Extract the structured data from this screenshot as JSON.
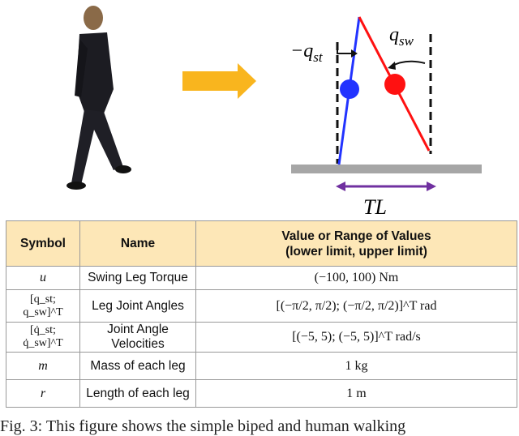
{
  "figure": {
    "stance_angle_label": "−q",
    "stance_angle_sub": "st",
    "swing_angle_label": "q",
    "swing_angle_sub": "sw",
    "step_length_label": "TL",
    "colors": {
      "stance_leg": "#2233ff",
      "swing_leg": "#ff1111",
      "arrow": "#f9b51e",
      "ground": "#a6a6a6",
      "step_arrow": "#7030a0"
    }
  },
  "table": {
    "headers": [
      "Symbol",
      "Name",
      "Value or Range of Values",
      "(lower limit, upper limit)"
    ],
    "rows": [
      {
        "symbol": "u",
        "name": "Swing Leg Torque",
        "value": "(−100, 100) Nm"
      },
      {
        "symbol": "[q_st; q_sw]^T",
        "name": "Leg Joint Angles",
        "value": "[(−π/2, π/2); (−π/2, π/2)]^T rad"
      },
      {
        "symbol": "[q̇_st; q̇_sw]^T",
        "name": "Joint Angle Velocities",
        "value": "[(−5, 5); (−5, 5)]^T rad/s"
      },
      {
        "symbol": "m",
        "name": "Mass of each leg",
        "value": "1 kg"
      },
      {
        "symbol": "r",
        "name": "Length of each leg",
        "value": "1 m"
      }
    ]
  },
  "caption": "Fig. 3: This figure shows the simple biped and human walking"
}
